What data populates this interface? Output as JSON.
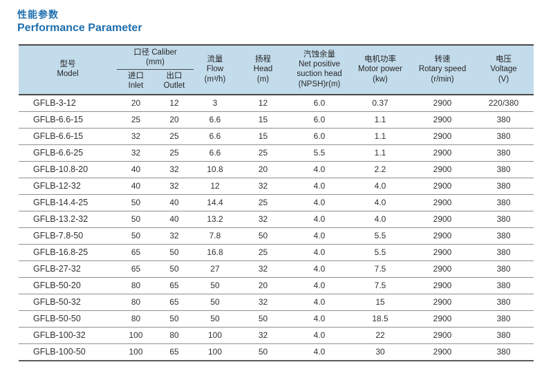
{
  "page": {
    "title_zh": "性能参数",
    "title_en": "Performance Parameter"
  },
  "colors": {
    "title_blue": "#1f6fae",
    "header_bg": "#c3dcec",
    "border_dark": "#474747",
    "row_line": "#8f8f8f",
    "text": "#303030"
  },
  "table": {
    "header": {
      "model": [
        "型号",
        "Model"
      ],
      "caliber": [
        "口径 Caliber",
        "(mm)"
      ],
      "inlet": [
        "进口",
        "Inlet"
      ],
      "outlet": [
        "出口",
        "Outlet"
      ],
      "flow": [
        "流量",
        "Flow",
        "(m³/h)"
      ],
      "head": [
        "扬程",
        "Head",
        "(m)"
      ],
      "npsh": [
        "汽蚀余量",
        "Net positive",
        "suction head",
        "(NPSH)r(m)"
      ],
      "motor_power": [
        "电机功率",
        "Motor power",
        "(kw)"
      ],
      "rotary_speed": [
        "转速",
        "Rotary speed",
        "(r/min)"
      ],
      "voltage": [
        "电压",
        "Voltage",
        "(V)"
      ]
    },
    "rows": [
      [
        "GFLB-3-12",
        "20",
        "12",
        "3",
        "12",
        "6.0",
        "0.37",
        "2900",
        "220/380"
      ],
      [
        "GFLB-6.6-15",
        "25",
        "20",
        "6.6",
        "15",
        "6.0",
        "1.1",
        "2900",
        "380"
      ],
      [
        "GFLB-6.6-15",
        "32",
        "25",
        "6.6",
        "15",
        "6.0",
        "1.1",
        "2900",
        "380"
      ],
      [
        "GFLB-6.6-25",
        "32",
        "25",
        "6.6",
        "25",
        "5.5",
        "1.1",
        "2900",
        "380"
      ],
      [
        "GFLB-10.8-20",
        "40",
        "32",
        "10.8",
        "20",
        "4.0",
        "2.2",
        "2900",
        "380"
      ],
      [
        "GFLB-12-32",
        "40",
        "32",
        "12",
        "32",
        "4.0",
        "4.0",
        "2900",
        "380"
      ],
      [
        "GFLB-14.4-25",
        "50",
        "40",
        "14.4",
        "25",
        "4.0",
        "4.0",
        "2900",
        "380"
      ],
      [
        "GFLB-13.2-32",
        "50",
        "40",
        "13.2",
        "32",
        "4.0",
        "4.0",
        "2900",
        "380"
      ],
      [
        "GFLB-7.8-50",
        "50",
        "32",
        "7.8",
        "50",
        "4.0",
        "5.5",
        "2900",
        "380"
      ],
      [
        "GFLB-16.8-25",
        "65",
        "50",
        "16.8",
        "25",
        "4.0",
        "5.5",
        "2900",
        "380"
      ],
      [
        "GFLB-27-32",
        "65",
        "50",
        "27",
        "32",
        "4.0",
        "7.5",
        "2900",
        "380"
      ],
      [
        "GFLB-50-20",
        "80",
        "65",
        "50",
        "20",
        "4.0",
        "7.5",
        "2900",
        "380"
      ],
      [
        "GFLB-50-32",
        "80",
        "65",
        "50",
        "32",
        "4.0",
        "15",
        "2900",
        "380"
      ],
      [
        "GFLB-50-50",
        "80",
        "50",
        "50",
        "50",
        "4.0",
        "18.5",
        "2900",
        "380"
      ],
      [
        "GFLB-100-32",
        "100",
        "80",
        "100",
        "32",
        "4.0",
        "22",
        "2900",
        "380"
      ],
      [
        "GFLB-100-50",
        "100",
        "65",
        "100",
        "50",
        "4.0",
        "30",
        "2900",
        "380"
      ]
    ]
  }
}
